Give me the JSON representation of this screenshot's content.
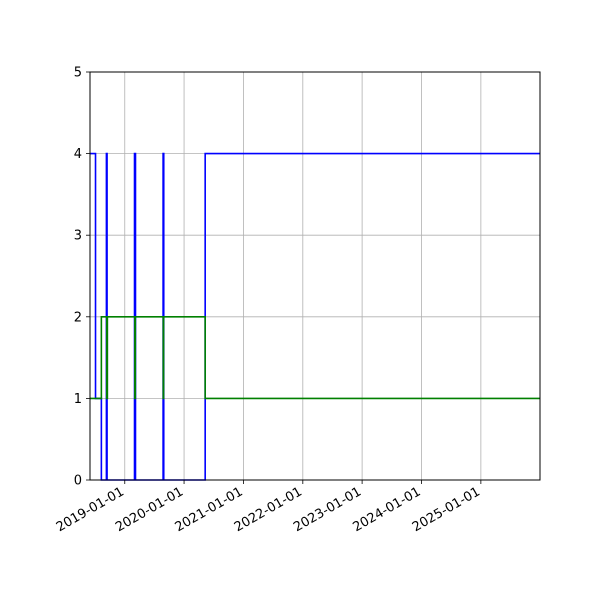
{
  "chart_data": {
    "type": "line",
    "step": true,
    "title": "",
    "xlabel": "",
    "ylabel": "",
    "grid": true,
    "legend": "none",
    "xlim": [
      "2018-06-01",
      "2025-12-31"
    ],
    "ylim": [
      0,
      5
    ],
    "y_ticks": [
      0,
      1,
      2,
      3,
      4,
      5
    ],
    "x_ticks": [
      "2019-01-01",
      "2020-01-01",
      "2021-01-01",
      "2022-01-01",
      "2023-01-01",
      "2024-01-01",
      "2025-01-01"
    ],
    "series": [
      {
        "color": "#0000ff",
        "points": [
          [
            "2018-06-01",
            4
          ],
          [
            "2018-07-05",
            4
          ],
          [
            "2018-07-05",
            1
          ],
          [
            "2018-08-10",
            1
          ],
          [
            "2018-08-10",
            0
          ],
          [
            "2018-09-10",
            0
          ],
          [
            "2018-09-10",
            4
          ],
          [
            "2018-09-14",
            4
          ],
          [
            "2018-09-14",
            0
          ],
          [
            "2019-03-02",
            0
          ],
          [
            "2019-03-02",
            4
          ],
          [
            "2019-03-08",
            4
          ],
          [
            "2019-03-08",
            0
          ],
          [
            "2019-08-25",
            0
          ],
          [
            "2019-08-25",
            4
          ],
          [
            "2019-08-29",
            4
          ],
          [
            "2019-08-29",
            0
          ],
          [
            "2020-05-10",
            0
          ],
          [
            "2020-05-10",
            4
          ],
          [
            "2025-12-31",
            4
          ]
        ]
      },
      {
        "color": "#008000",
        "points": [
          [
            "2018-06-01",
            1
          ],
          [
            "2018-08-10",
            1
          ],
          [
            "2018-08-10",
            2
          ],
          [
            "2018-09-12",
            2
          ],
          [
            "2018-09-12",
            1
          ],
          [
            "2018-09-16",
            1
          ],
          [
            "2018-09-16",
            2
          ],
          [
            "2019-03-04",
            2
          ],
          [
            "2019-03-04",
            1
          ],
          [
            "2019-03-07",
            1
          ],
          [
            "2019-03-07",
            2
          ],
          [
            "2019-08-26",
            2
          ],
          [
            "2019-08-26",
            1
          ],
          [
            "2019-08-28",
            1
          ],
          [
            "2019-08-28",
            2
          ],
          [
            "2020-05-10",
            2
          ],
          [
            "2020-05-10",
            1
          ],
          [
            "2025-12-31",
            1
          ]
        ]
      }
    ]
  }
}
